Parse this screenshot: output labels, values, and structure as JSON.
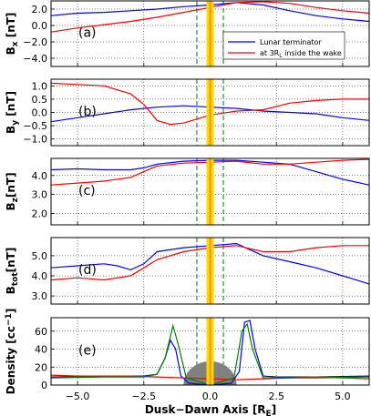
{
  "figure": {
    "x_axis_label": "Dusk−Dawn Axis [R",
    "x_axis_label_sub": "E",
    "x_axis_label_end": "]",
    "x_ticks": [
      "−5.0",
      "−2.5",
      "0.0",
      "2.5",
      "5.0"
    ],
    "legend": {
      "series_1": "Lunar terminator",
      "series_2": "at 3R",
      "series_2_sub": "L",
      "series_2_end": " inside the wake"
    }
  },
  "colors": {
    "blue": "#0000ff",
    "red": "#ff0000",
    "green": "#008000",
    "yellow": "#ffd700",
    "orange": "#ff8c00",
    "moon": "#808080"
  },
  "chart_data": [
    {
      "type": "line",
      "panel_tag": "(a)",
      "ylabel": "B",
      "ylabel_sub": "x",
      "ylabel_end": " [nT]",
      "ylim": [
        -5,
        3
      ],
      "xlim": [
        -6,
        6
      ],
      "yticks": [
        2.0,
        0.0,
        -2.0,
        -4.0
      ],
      "ytick_labels": [
        "2.0",
        "0.0",
        "−2.0",
        "−4.0"
      ],
      "grid": true,
      "legend_position": "right",
      "series": [
        {
          "name": "Lunar terminator",
          "color": "blue",
          "x": [
            -6,
            -5,
            -4,
            -3,
            -2,
            -1,
            0,
            1,
            2,
            3,
            4,
            5,
            6
          ],
          "y": [
            1.2,
            1.5,
            1.6,
            1.8,
            2.0,
            2.3,
            2.5,
            2.8,
            2.5,
            1.8,
            1.2,
            0.8,
            0.5
          ]
        },
        {
          "name": "at 3RL inside the wake",
          "color": "red",
          "x": [
            -6,
            -5,
            -4,
            -3,
            -2,
            -1,
            0,
            1,
            2,
            3,
            4,
            5,
            6
          ],
          "y": [
            -0.8,
            -0.3,
            0.1,
            0.5,
            1.0,
            1.6,
            2.2,
            2.8,
            2.9,
            2.7,
            2.2,
            1.8,
            1.5
          ]
        }
      ]
    },
    {
      "type": "line",
      "panel_tag": "(b)",
      "ylabel": "B",
      "ylabel_sub": "y",
      "ylabel_end": " [nT]",
      "ylim": [
        -1.25,
        1.25
      ],
      "xlim": [
        -6,
        6
      ],
      "yticks": [
        1.0,
        0.5,
        0.0,
        -0.5,
        -1.0
      ],
      "ytick_labels": [
        "1.0",
        "0.5",
        "0.0",
        "−0.5",
        "−1.0"
      ],
      "grid": true,
      "series": [
        {
          "name": "Lunar terminator",
          "color": "blue",
          "x": [
            -6,
            -5,
            -4,
            -3,
            -2,
            -1,
            0,
            1,
            2,
            3,
            4,
            5,
            6
          ],
          "y": [
            -0.35,
            -0.2,
            -0.05,
            0.1,
            0.2,
            0.25,
            0.2,
            0.15,
            0.05,
            0.0,
            -0.05,
            -0.2,
            -0.3
          ]
        },
        {
          "name": "at 3RL inside the wake",
          "color": "red",
          "x": [
            -6,
            -5,
            -4,
            -3,
            -2.5,
            -2,
            -1.5,
            -1,
            0,
            1,
            2,
            3,
            4,
            5,
            6
          ],
          "y": [
            1.1,
            1.05,
            1.0,
            0.7,
            0.3,
            -0.3,
            -0.45,
            -0.4,
            -0.1,
            0.05,
            0.1,
            0.35,
            0.45,
            0.5,
            0.5
          ]
        }
      ]
    },
    {
      "type": "line",
      "panel_tag": "(c)",
      "ylabel": "B",
      "ylabel_sub": "z",
      "ylabel_end": "[nT]",
      "ylim": [
        1.4,
        4.9
      ],
      "xlim": [
        -6,
        6
      ],
      "yticks": [
        4.0,
        3.0,
        2.0
      ],
      "ytick_labels": [
        "4.0",
        "3.0",
        "2.0"
      ],
      "grid": true,
      "series": [
        {
          "name": "Lunar terminator",
          "color": "blue",
          "x": [
            -6,
            -5,
            -4,
            -3,
            -2.5,
            -2,
            -1,
            0,
            1,
            2,
            3,
            4,
            5,
            6
          ],
          "y": [
            4.3,
            4.35,
            4.3,
            4.3,
            4.4,
            4.6,
            4.75,
            4.8,
            4.8,
            4.7,
            4.6,
            4.2,
            3.8,
            3.5
          ]
        },
        {
          "name": "at 3RL inside the wake",
          "color": "red",
          "x": [
            -6,
            -5,
            -4,
            -3,
            -2.5,
            -2,
            -1,
            0,
            1,
            2,
            3,
            4,
            5,
            6
          ],
          "y": [
            3.5,
            3.6,
            3.7,
            3.9,
            4.2,
            4.5,
            4.65,
            4.7,
            4.75,
            4.6,
            4.6,
            4.7,
            4.8,
            4.85
          ]
        }
      ]
    },
    {
      "type": "line",
      "panel_tag": "(d)",
      "ylabel": "B",
      "ylabel_sub": "tot",
      "ylabel_end": "[nT]",
      "ylim": [
        2.6,
        5.9
      ],
      "xlim": [
        -6,
        6
      ],
      "yticks": [
        5.0,
        4.0,
        3.0
      ],
      "ytick_labels": [
        "5.0",
        "4.0",
        "3.0"
      ],
      "grid": true,
      "series": [
        {
          "name": "Lunar terminator",
          "color": "blue",
          "x": [
            -6,
            -5,
            -4,
            -3.5,
            -3,
            -2.5,
            -2,
            -1,
            0,
            1,
            1.5,
            2,
            3,
            4,
            5,
            6
          ],
          "y": [
            4.4,
            4.5,
            4.6,
            4.5,
            4.3,
            4.6,
            5.2,
            5.4,
            5.5,
            5.6,
            5.3,
            5.0,
            4.7,
            4.4,
            4.0,
            3.6
          ]
        },
        {
          "name": "at 3RL inside the wake",
          "color": "red",
          "x": [
            -6,
            -5,
            -4,
            -3,
            -2.5,
            -2,
            -1,
            0,
            1,
            2,
            3,
            4,
            5,
            6
          ],
          "y": [
            3.8,
            3.9,
            3.8,
            4.0,
            4.4,
            4.8,
            5.2,
            5.4,
            5.5,
            5.2,
            5.2,
            5.4,
            5.5,
            5.5
          ]
        }
      ]
    },
    {
      "type": "line",
      "panel_tag": "(e)",
      "ylabel": "Density [cc",
      "ylabel_sup": "−1",
      "ylabel_end": "]",
      "ylim": [
        0,
        75
      ],
      "xlim": [
        -6,
        6
      ],
      "yticks": [
        0,
        20,
        40,
        60
      ],
      "ytick_labels": [
        "0",
        "20",
        "40",
        "60"
      ],
      "grid": true,
      "series": [
        {
          "name": "Lunar terminator",
          "color": "blue",
          "x": [
            -6,
            -4,
            -2.5,
            -2,
            -1.7,
            -1.5,
            -1.3,
            -1.1,
            -0.8,
            0,
            0.8,
            1.1,
            1.3,
            1.5,
            1.7,
            2,
            2.5,
            4,
            6
          ],
          "y": [
            9,
            10,
            10,
            12,
            30,
            50,
            40,
            10,
            2,
            0,
            2,
            15,
            70,
            72,
            40,
            10,
            9,
            9,
            10
          ]
        },
        {
          "name": "at 3RL inside the wake",
          "color": "red",
          "x": [
            -6,
            -5,
            -4,
            -3,
            -2,
            -1,
            0,
            1,
            2,
            3,
            4,
            5,
            6
          ],
          "y": [
            11,
            10,
            10,
            10,
            9,
            8,
            7,
            6,
            7,
            8,
            9,
            8,
            7
          ]
        },
        {
          "name": "",
          "color": "green",
          "x": [
            -6,
            -4,
            -2.5,
            -2,
            -1.7,
            -1.4,
            -1.2,
            -0.9,
            0,
            0.9,
            1.2,
            1.4,
            1.6,
            2,
            2.5,
            4,
            6
          ],
          "y": [
            8,
            9,
            9,
            12,
            30,
            66,
            45,
            8,
            0,
            8,
            60,
            68,
            40,
            8,
            8,
            8,
            9
          ]
        }
      ]
    }
  ]
}
